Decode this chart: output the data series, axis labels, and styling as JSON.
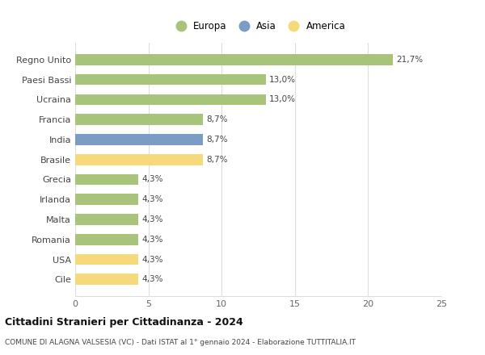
{
  "categories": [
    "Cile",
    "USA",
    "Romania",
    "Malta",
    "Irlanda",
    "Grecia",
    "Brasile",
    "India",
    "Francia",
    "Ucraina",
    "Paesi Bassi",
    "Regno Unito"
  ],
  "values": [
    4.3,
    4.3,
    4.3,
    4.3,
    4.3,
    4.3,
    8.7,
    8.7,
    8.7,
    13.0,
    13.0,
    21.7
  ],
  "labels": [
    "4,3%",
    "4,3%",
    "4,3%",
    "4,3%",
    "4,3%",
    "4,3%",
    "8,7%",
    "8,7%",
    "8,7%",
    "13,0%",
    "13,0%",
    "21,7%"
  ],
  "colors": [
    "#f5d97a",
    "#f5d97a",
    "#a8c47a",
    "#a8c47a",
    "#a8c47a",
    "#a8c47a",
    "#f5d97a",
    "#7b9cc4",
    "#a8c47a",
    "#a8c47a",
    "#a8c47a",
    "#a8c47a"
  ],
  "legend_labels": [
    "Europa",
    "Asia",
    "America"
  ],
  "legend_colors": [
    "#a8c47a",
    "#7b9cc4",
    "#f5d97a"
  ],
  "title": "Cittadini Stranieri per Cittadinanza - 2024",
  "subtitle": "COMUNE DI ALAGNA VALSESIA (VC) - Dati ISTAT al 1° gennaio 2024 - Elaborazione TUTTITALIA.IT",
  "xlim": [
    0,
    25
  ],
  "xticks": [
    0,
    5,
    10,
    15,
    20,
    25
  ],
  "background_color": "#ffffff",
  "bar_height": 0.55,
  "grid_color": "#dddddd"
}
